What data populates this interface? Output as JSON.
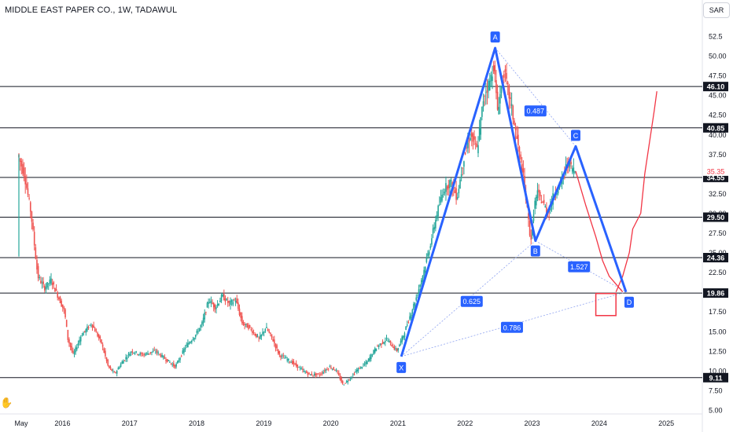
{
  "header": {
    "title": "MIDDLE EAST PAPER CO., 1W, TADAWUL",
    "currency": "SAR"
  },
  "icons": {
    "drag": "hand-pointer-icon"
  },
  "colors": {
    "up": "#26a69a",
    "down": "#ef5350",
    "pattern": "#2962ff",
    "curve": "#f23645",
    "level": "#131722",
    "current_price": "#f23645"
  },
  "chart_data": {
    "type": "candlestick",
    "x_axis": {
      "tick_labels": [
        "May",
        "2016",
        "2017",
        "2018",
        "2019",
        "2020",
        "2021",
        "2022",
        "2023",
        "2024",
        "2025"
      ]
    },
    "y_axis": {
      "range": [
        4.5,
        54.5
      ],
      "tick_labels": [
        "52.5",
        "50.00",
        "47.50",
        "45.00",
        "42.50",
        "40.00",
        "37.50",
        "35.00",
        "32.50",
        "30.00",
        "27.50",
        "25.00",
        "22.50",
        "20.00",
        "17.50",
        "15.00",
        "12.50",
        "10.00",
        "7.50",
        "5.00"
      ]
    },
    "price_path": [
      [
        2015.35,
        37.5
      ],
      [
        2015.45,
        35.0
      ],
      [
        2015.55,
        30.0
      ],
      [
        2015.65,
        22.0
      ],
      [
        2015.75,
        20.5
      ],
      [
        2015.85,
        21.5
      ],
      [
        2015.95,
        19.5
      ],
      [
        2016.05,
        17.5
      ],
      [
        2016.1,
        14.0
      ],
      [
        2016.18,
        12.0
      ],
      [
        2016.3,
        14.5
      ],
      [
        2016.45,
        16.0
      ],
      [
        2016.6,
        13.5
      ],
      [
        2016.7,
        10.5
      ],
      [
        2016.8,
        9.6
      ],
      [
        2016.9,
        11.0
      ],
      [
        2017.05,
        12.5
      ],
      [
        2017.2,
        12.0
      ],
      [
        2017.4,
        12.5
      ],
      [
        2017.55,
        11.5
      ],
      [
        2017.7,
        10.5
      ],
      [
        2017.85,
        13.0
      ],
      [
        2018.0,
        14.5
      ],
      [
        2018.1,
        16.0
      ],
      [
        2018.2,
        19.0
      ],
      [
        2018.3,
        18.0
      ],
      [
        2018.4,
        19.5
      ],
      [
        2018.5,
        18.5
      ],
      [
        2018.6,
        19.0
      ],
      [
        2018.7,
        16.0
      ],
      [
        2018.8,
        15.5
      ],
      [
        2018.95,
        14.0
      ],
      [
        2019.05,
        15.5
      ],
      [
        2019.15,
        14.0
      ],
      [
        2019.25,
        12.0
      ],
      [
        2019.35,
        11.5
      ],
      [
        2019.45,
        11.0
      ],
      [
        2019.6,
        10.0
      ],
      [
        2019.7,
        9.5
      ],
      [
        2019.85,
        9.5
      ],
      [
        2020.0,
        10.5
      ],
      [
        2020.1,
        10.0
      ],
      [
        2020.2,
        8.2
      ],
      [
        2020.3,
        9.0
      ],
      [
        2020.4,
        10.0
      ],
      [
        2020.55,
        11.0
      ],
      [
        2020.7,
        13.0
      ],
      [
        2020.85,
        14.0
      ],
      [
        2021.0,
        12.5
      ],
      [
        2021.1,
        14.5
      ],
      [
        2021.2,
        17.0
      ],
      [
        2021.3,
        19.5
      ],
      [
        2021.4,
        22.5
      ],
      [
        2021.5,
        26.0
      ],
      [
        2021.6,
        30.0
      ],
      [
        2021.7,
        33.0
      ],
      [
        2021.8,
        34.0
      ],
      [
        2021.9,
        32.0
      ],
      [
        2022.0,
        37.0
      ],
      [
        2022.1,
        40.0
      ],
      [
        2022.2,
        38.0
      ],
      [
        2022.3,
        45.0
      ],
      [
        2022.4,
        47.0
      ],
      [
        2022.45,
        49.0
      ],
      [
        2022.5,
        43.0
      ],
      [
        2022.6,
        48.0
      ],
      [
        2022.7,
        44.0
      ],
      [
        2022.8,
        39.0
      ],
      [
        2022.9,
        34.0
      ],
      [
        2022.95,
        30.0
      ],
      [
        2023.0,
        26.5
      ],
      [
        2023.05,
        31.0
      ],
      [
        2023.1,
        32.5
      ],
      [
        2023.2,
        31.0
      ],
      [
        2023.25,
        30.0
      ],
      [
        2023.35,
        32.5
      ],
      [
        2023.45,
        34.0
      ],
      [
        2023.55,
        36.5
      ],
      [
        2023.65,
        35.35
      ]
    ],
    "horizontal_levels": [
      "46.10",
      "40.85",
      "34.55",
      "29.50",
      "24.36",
      "19.86",
      "9.11"
    ],
    "current_price": "35.35",
    "pattern": {
      "points": [
        {
          "label": "X",
          "x": 2021.05,
          "y": 11.8
        },
        {
          "label": "A",
          "x": 2022.45,
          "y": 51.0
        },
        {
          "label": "B",
          "x": 2023.05,
          "y": 26.5
        },
        {
          "label": "C",
          "x": 2023.65,
          "y": 38.5
        },
        {
          "label": "D",
          "x": 2024.4,
          "y": 20.0
        }
      ],
      "ratios": [
        {
          "label": "0.487",
          "x": 2023.05,
          "y": 43.0
        },
        {
          "label": "1.527",
          "x": 2023.7,
          "y": 23.2
        },
        {
          "label": "0.625",
          "x": 2022.1,
          "y": 18.8
        },
        {
          "label": "0.786",
          "x": 2022.7,
          "y": 15.5
        }
      ],
      "target_zone": {
        "x0": 2023.95,
        "x1": 2024.25,
        "y0": 17.0,
        "y1": 19.8
      }
    },
    "projection_curves": [
      [
        [
          2023.65,
          35.35
        ],
        [
          2023.8,
          31.0
        ],
        [
          2023.95,
          27.0
        ],
        [
          2024.05,
          24.0
        ],
        [
          2024.15,
          22.0
        ],
        [
          2024.25,
          21.0
        ],
        [
          2024.35,
          20.0
        ]
      ],
      [
        [
          2024.25,
          20.0
        ],
        [
          2024.35,
          22.0
        ],
        [
          2024.45,
          25.0
        ],
        [
          2024.5,
          28.0
        ],
        [
          2024.62,
          30.0
        ],
        [
          2024.68,
          35.0
        ],
        [
          2024.75,
          39.0
        ],
        [
          2024.82,
          43.0
        ],
        [
          2024.86,
          45.5
        ]
      ]
    ]
  }
}
